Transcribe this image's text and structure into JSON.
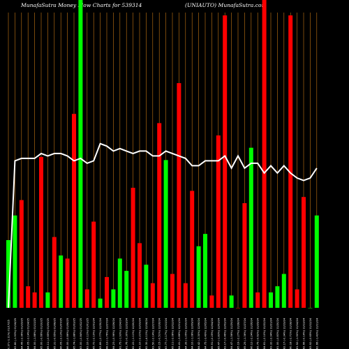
{
  "header": {
    "title_left": "MunafaSutra  Money Flow  Charts for 539314",
    "title_right": "(UNIAUTO) MunafaSutra.com"
  },
  "colors": {
    "background": "#000000",
    "up": "#00ff00",
    "down": "#ff0000",
    "grid": "#c87814",
    "line": "#ffffff",
    "text": "#ffffff"
  },
  "chart_data": {
    "type": "bar",
    "title": "MunafaSutra  Money Flow  Charts for 539314 (UNIAUTO) MunafaSutra.com",
    "xlabel": "",
    "ylabel": "",
    "grid": true,
    "legend": "none",
    "bar_range": [
      0,
      100
    ],
    "line_range": [
      0,
      100
    ],
    "categories": [
      "Fri 17/01/2025",
      "Thu 16/01/2025",
      "Wed 15/01/2025",
      "Tue 14/01/2025",
      "Mon 13/01/2025",
      "Fri 10/01/2025",
      "Thu 09/01/2025",
      "Wed 08/01/2025",
      "Tue 07/01/2025",
      "Mon 06/01/2025",
      "Fri 03/01/2025",
      "Thu 02/01/2025",
      "Wed 01/01/2025",
      "Tue 31/12/2024",
      "Mon 30/12/2024",
      "Fri 27/12/2024",
      "Thu 26/12/2024",
      "Tue 24/12/2024",
      "Mon 23/12/2024",
      "Fri 20/12/2024",
      "Thu 19/12/2024",
      "Wed 18/12/2024",
      "Tue 17/12/2024",
      "Mon 16/12/2024",
      "Fri 13/12/2024",
      "Thu 12/12/2024",
      "Wed 11/12/2024",
      "Tue 10/12/2024",
      "Mon 09/12/2024",
      "Fri 06/12/2024",
      "Thu 05/12/2024",
      "Wed 04/12/2024",
      "Tue 03/12/2024",
      "Mon 02/12/2024",
      "Fri 29/11/2024",
      "Thu 28/11/2024",
      "Wed 27/11/2024",
      "Tue 26/11/2024",
      "Mon 25/11/2024",
      "Fri 22/11/2024",
      "Thu 21/11/2024",
      "Wed 20/11/2024",
      "Tue 19/11/2024",
      "Mon 18/11/2024",
      "Thu 14/11/2024",
      "Wed 13/11/2024",
      "Tue 12/11/2024",
      "Mon 11/11/2024"
    ],
    "x_tick_labels": [
      "0.37 (-1.11%) 01/17/25",
      "83.80 (-1.93%) 01/16/25",
      "84.45 (-2.96%) 01/15/25",
      "84.05 (-3.14%) 01/14/25",
      "84.00 (-1.88%) 01/13/25",
      "85.00 (-0.66%) 01/10/25",
      "85.11 (-0.65%) 01/09/25",
      "85.31 (-0.65%) 01/08/25",
      "86.05 (-2.13%) 01/07/25",
      "86.00 (-0.86%) 01/06/25",
      "85.74 (-1.88%) 01/03/25",
      "83.00 (-0.84%) 01/02/25",
      "83.10 (-0.11%) 01/01/25",
      "85.72 (-2.19%) 12/31/24",
      "83.89 (-2.77%) 12/30/24",
      "88.13 (-1.76%) 12/27/24",
      "84.23 (-0.96%) 12/26/24",
      "81.75 (-1.93%) 12/24/24",
      "81.76 (-0.30%) 12/23/24",
      "82.22 (-1.11%) 12/20/24",
      "81.10 (-2.21%) 12/19/24",
      "82.30 (-4.11%) 12/18/24",
      "83.50 (-2.14%) 12/17/24",
      "85.15 (-0.51%) 12/16/24",
      "83.77 (-3.17%) 12/13/24",
      "85.11 (-2.08%) 12/12/24",
      "84.41 (-3.86%) 12/11/24",
      "84.39 (-1.05%) 12/10/24",
      "84.10 (-1.08%) 12/09/24",
      "84.42 (-3.30%) 12/06/24",
      "84.75 (-3.49%) 12/05/24",
      "85.91 (-0.25%) 12/04/24",
      "85.47 (-1.83%) 12/03/24",
      "83.17 (-0.46%) 12/02/24",
      "84.47 (-1.56%) 11/29/24",
      "85.19 (-2.27%) 11/28/24",
      "85.25 (-1.36%) 11/27/24",
      "86.12 (-2.24%) 11/26/24",
      "85.75 (-0.62%) 11/25/24",
      "84.61 (-2.10%) 11/22/24",
      "83.32 (-2.94%) 11/21/24",
      "81.00 (-0.83%) 11/20/24",
      "82.17 (-0.34%) 11/19/24",
      "80.18 (-2.71%) 11/18/24",
      "81.52 (-1.90%) 11/14/24",
      "82.66 (-0.14%) 11/13/24",
      "83.92 (-0.65%) 11/12/24",
      "82.66 (-1.43%) 11/11/24"
    ],
    "series": [
      {
        "type": "bar",
        "values": [
          22,
          30,
          35,
          7,
          5,
          49,
          5,
          23,
          17,
          16,
          63,
          100,
          6,
          28,
          3,
          10,
          6,
          16,
          12,
          39,
          21,
          14,
          8,
          60,
          48,
          11,
          73,
          8,
          38,
          20,
          24,
          4,
          56,
          95,
          4,
          0,
          34,
          52,
          5,
          100,
          5,
          7,
          11,
          95,
          6,
          36,
          0,
          30
        ],
        "directions": [
          "up",
          "up",
          "down",
          "down",
          "down",
          "down",
          "up",
          "down",
          "up",
          "down",
          "down",
          "up",
          "down",
          "down",
          "up",
          "down",
          "up",
          "up",
          "up",
          "down",
          "down",
          "up",
          "down",
          "down",
          "up",
          "down",
          "down",
          "down",
          "down",
          "up",
          "up",
          "down",
          "down",
          "down",
          "up",
          "down",
          "down",
          "up",
          "down",
          "down",
          "up",
          "up",
          "up",
          "down",
          "down",
          "down",
          "up",
          "up"
        ]
      },
      {
        "type": "line",
        "values": [
          0,
          60,
          61,
          61,
          61,
          63,
          62,
          63,
          63,
          62,
          60,
          61,
          59,
          60,
          67,
          66,
          64,
          65,
          64,
          63,
          64,
          64,
          62,
          62,
          64,
          63,
          62,
          61,
          58,
          58,
          60,
          60,
          60,
          62,
          57,
          62,
          57,
          59,
          59,
          55,
          58,
          55,
          58,
          55,
          53,
          52,
          53,
          57
        ]
      }
    ]
  }
}
